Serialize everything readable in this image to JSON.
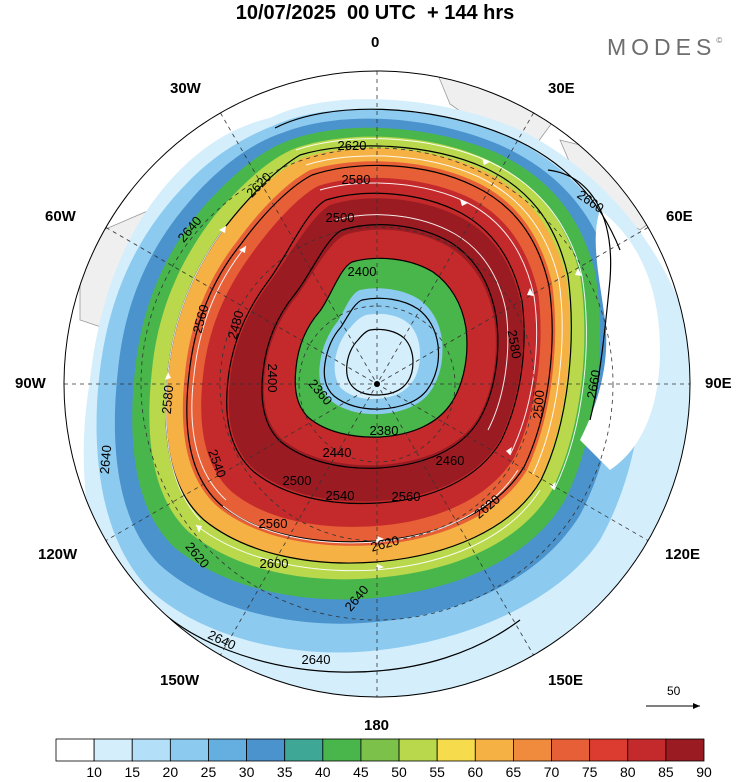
{
  "title": "10/07/2025  00 UTC  + 144 hrs",
  "brand": "MODES",
  "brand_mark": "©",
  "meridian_labels": {
    "lon_0": "0",
    "lon_30e": "30E",
    "lon_60e": "60E",
    "lon_90e": "90E",
    "lon_120e": "120E",
    "lon_150e": "150E",
    "lon_180": "180",
    "lon_150w": "150W",
    "lon_120w": "120W",
    "lon_90w": "90W",
    "lon_60w": "60W",
    "lon_30w": "30W"
  },
  "contour_labels": {
    "c2620_top": "2620",
    "c2580_top": "2580",
    "c2500_top": "2500",
    "c2400_top": "2400",
    "c2660_ne": "2660",
    "c2660_e": "2660",
    "c2640_w": "2640",
    "c2620_nw": "2620",
    "c2560_w": "2560",
    "c2480_w": "2480",
    "c2580_w": "2580",
    "c2640_far_w": "2640",
    "c2400_inner": "2400",
    "c2360": "2360",
    "c2380": "2380",
    "c2440": "2440",
    "c2460": "2460",
    "c2500_s": "2500",
    "c2540_s": "2540",
    "c2540_sw": "2540",
    "c2560_s": "2560",
    "c2560_sw": "2560",
    "c2600_sw": "2600",
    "c2620_s": "2620",
    "c2620_se": "2620",
    "c2620_sw": "2620",
    "c2640_s": "2640",
    "c2640_ss": "2640",
    "c2640_sww": "2640",
    "c2500_e": "2500",
    "c2580_e": "2580"
  },
  "colorbar": {
    "colors": [
      "#ffffff",
      "#d4eefb",
      "#b3e0f8",
      "#8ccaef",
      "#64aee0",
      "#4b93cd",
      "#3fa796",
      "#49b64c",
      "#7cc24a",
      "#b9d84b",
      "#f6dc4d",
      "#f5b144",
      "#f08a3c",
      "#e75f36",
      "#dc3b30",
      "#c42a2b",
      "#9a1c22"
    ],
    "labels": [
      "10",
      "15",
      "20",
      "25",
      "30",
      "35",
      "40",
      "45",
      "50",
      "55",
      "60",
      "65",
      "70",
      "75",
      "80",
      "85",
      "90"
    ]
  },
  "reference_vector": {
    "label": "50"
  }
}
